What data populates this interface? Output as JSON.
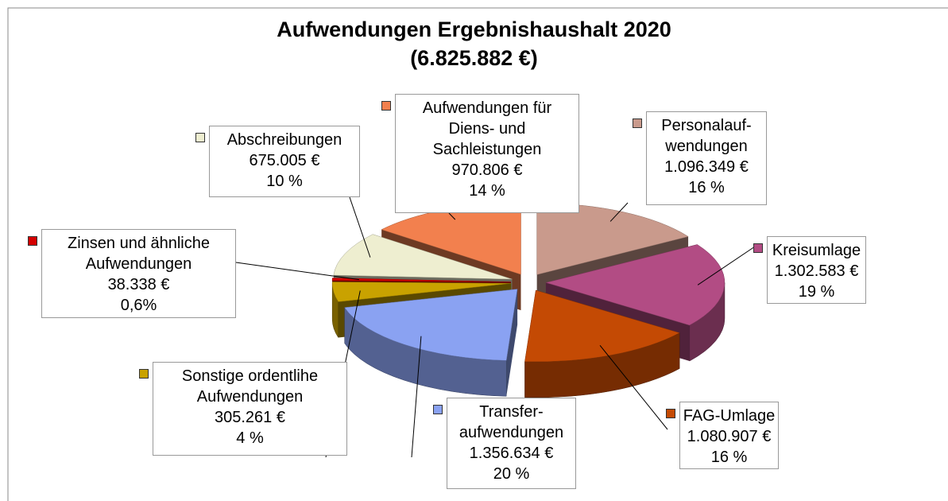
{
  "chart_data": {
    "type": "pie",
    "title": "Aufwendungen Ergebnishaushalt 2020",
    "subtitle": "(6.825.882 €)",
    "categories": [
      "Personalauf-\nwendungen",
      "Kreisumlage",
      "FAG-Umlage",
      "Transfer-\naufwendungen",
      "Sonstige ordentlihe\nAufwendungen",
      "Zinsen und ähnliche\nAufwendungen",
      "Abschreibungen",
      "Aufwendungen für\nDiens- und\nSachleistungen"
    ],
    "values": [
      1096349,
      1302583,
      1080907,
      1356634,
      305261,
      38338,
      675005,
      970806
    ],
    "value_labels": [
      "1.096.349 €",
      "1.302.583 €",
      "1.080.907 €",
      "1.356.634 €",
      "305.261 €",
      "38.338 €",
      "675.005 €",
      "970.806 €"
    ],
    "percentages": [
      16,
      19,
      16,
      20,
      4,
      0.6,
      10,
      14
    ],
    "percentage_labels": [
      "16 %",
      "19 %",
      "16 %",
      "20 %",
      "4 %",
      "0,6%",
      "10 %",
      "14 %"
    ],
    "colors": [
      "#c99a8c",
      "#b24c84",
      "#c44a04",
      "#8aa2f2",
      "#c9a200",
      "#d40000",
      "#eeeed0",
      "#f2804e"
    ]
  }
}
